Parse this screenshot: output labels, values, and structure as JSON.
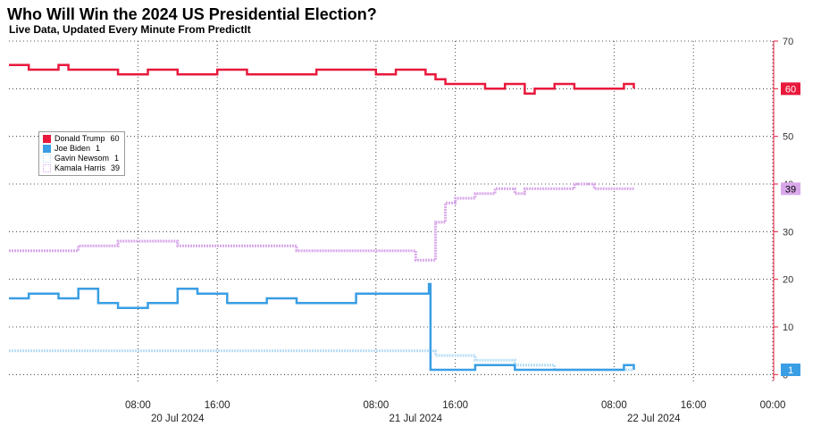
{
  "chart_data": {
    "type": "line",
    "title": "Who Will Win the 2024 US Presidential Election?",
    "subtitle": "Live Data, Updated Every Minute From PredictIt",
    "xlabel": "",
    "ylabel": "",
    "ylim": [
      -0.5,
      70
    ],
    "yticks": [
      0,
      10,
      20,
      30,
      40,
      50,
      60,
      70
    ],
    "xlim": [
      "2024-07-19 19:00",
      "2024-07-23 00:00"
    ],
    "x_time_ticks": [
      "08:00",
      "16:00",
      "08:00",
      "16:00",
      "08:00",
      "16:00",
      "00:00"
    ],
    "x_date_labels": [
      "20 Jul 2024",
      "21 Jul 2024",
      "22 Jul 2024"
    ],
    "grid": true,
    "legend_position": "top-left",
    "series": [
      {
        "name": "Donald Trump",
        "legend_value": "60",
        "last_label": "60",
        "color": "#e8193c",
        "style": "solid",
        "points": [
          [
            "2024-07-19 19:00",
            65
          ],
          [
            "2024-07-19 21:00",
            64
          ],
          [
            "2024-07-20 00:00",
            65
          ],
          [
            "2024-07-20 01:00",
            64
          ],
          [
            "2024-07-20 06:00",
            63
          ],
          [
            "2024-07-20 09:00",
            64
          ],
          [
            "2024-07-20 12:00",
            63
          ],
          [
            "2024-07-20 16:00",
            64
          ],
          [
            "2024-07-20 19:00",
            63
          ],
          [
            "2024-07-20 22:00",
            63
          ],
          [
            "2024-07-21 02:00",
            64
          ],
          [
            "2024-07-21 04:00",
            64
          ],
          [
            "2024-07-21 08:00",
            63
          ],
          [
            "2024-07-21 10:00",
            64
          ],
          [
            "2024-07-21 13:00",
            63
          ],
          [
            "2024-07-21 14:00",
            62
          ],
          [
            "2024-07-21 15:00",
            61
          ],
          [
            "2024-07-21 18:00",
            61
          ],
          [
            "2024-07-21 19:00",
            60
          ],
          [
            "2024-07-21 21:00",
            61
          ],
          [
            "2024-07-21 23:00",
            59
          ],
          [
            "2024-07-22 00:00",
            60
          ],
          [
            "2024-07-22 02:00",
            61
          ],
          [
            "2024-07-22 04:00",
            60
          ],
          [
            "2024-07-22 07:00",
            60
          ],
          [
            "2024-07-22 09:00",
            61
          ],
          [
            "2024-07-22 10:00",
            60
          ]
        ]
      },
      {
        "name": "Joe Biden",
        "legend_value": "1",
        "last_label": "1",
        "color": "#3a9ee4",
        "style": "solid",
        "points": [
          [
            "2024-07-19 19:00",
            16
          ],
          [
            "2024-07-19 21:00",
            17
          ],
          [
            "2024-07-20 00:00",
            16
          ],
          [
            "2024-07-20 02:00",
            18
          ],
          [
            "2024-07-20 04:00",
            15
          ],
          [
            "2024-07-20 06:00",
            14
          ],
          [
            "2024-07-20 09:00",
            15
          ],
          [
            "2024-07-20 12:00",
            18
          ],
          [
            "2024-07-20 14:00",
            17
          ],
          [
            "2024-07-20 17:00",
            15
          ],
          [
            "2024-07-20 21:00",
            16
          ],
          [
            "2024-07-21 00:00",
            15
          ],
          [
            "2024-07-21 03:00",
            15
          ],
          [
            "2024-07-21 06:00",
            17
          ],
          [
            "2024-07-21 09:00",
            17
          ],
          [
            "2024-07-21 13:00",
            17
          ],
          [
            "2024-07-21 13:20",
            19
          ],
          [
            "2024-07-21 13:30",
            1
          ],
          [
            "2024-07-21 18:00",
            2
          ],
          [
            "2024-07-21 22:00",
            1
          ],
          [
            "2024-07-22 03:00",
            1
          ],
          [
            "2024-07-22 06:00",
            1
          ],
          [
            "2024-07-22 09:00",
            2
          ],
          [
            "2024-07-22 10:00",
            1
          ]
        ]
      },
      {
        "name": "Gavin Newsom",
        "legend_value": "1",
        "last_label": "",
        "color": "#b9def6",
        "style": "dotted",
        "points": [
          [
            "2024-07-19 19:00",
            5
          ],
          [
            "2024-07-20 04:00",
            5
          ],
          [
            "2024-07-20 12:00",
            5
          ],
          [
            "2024-07-20 20:00",
            5
          ],
          [
            "2024-07-21 04:00",
            5
          ],
          [
            "2024-07-21 10:00",
            5
          ],
          [
            "2024-07-21 13:00",
            5
          ],
          [
            "2024-07-21 14:00",
            4
          ],
          [
            "2024-07-21 18:00",
            3
          ],
          [
            "2024-07-21 22:00",
            2
          ],
          [
            "2024-07-22 02:00",
            1
          ],
          [
            "2024-07-22 06:00",
            1
          ],
          [
            "2024-07-22 10:00",
            1
          ]
        ]
      },
      {
        "name": "Kamala Harris",
        "legend_value": "39",
        "last_label": "39",
        "color": "#d9a8ea",
        "style": "dotted",
        "points": [
          [
            "2024-07-19 19:00",
            26
          ],
          [
            "2024-07-20 02:00",
            27
          ],
          [
            "2024-07-20 06:00",
            28
          ],
          [
            "2024-07-20 12:00",
            27
          ],
          [
            "2024-07-20 18:00",
            27
          ],
          [
            "2024-07-21 00:00",
            26
          ],
          [
            "2024-07-21 06:00",
            26
          ],
          [
            "2024-07-21 10:00",
            26
          ],
          [
            "2024-07-21 12:00",
            24
          ],
          [
            "2024-07-21 13:00",
            24
          ],
          [
            "2024-07-21 14:00",
            32
          ],
          [
            "2024-07-21 15:00",
            36
          ],
          [
            "2024-07-21 16:00",
            37
          ],
          [
            "2024-07-21 18:00",
            38
          ],
          [
            "2024-07-21 20:00",
            39
          ],
          [
            "2024-07-21 22:00",
            38
          ],
          [
            "2024-07-21 23:00",
            39
          ],
          [
            "2024-07-22 00:00",
            39
          ],
          [
            "2024-07-22 02:00",
            39
          ],
          [
            "2024-07-22 04:00",
            40
          ],
          [
            "2024-07-22 06:00",
            39
          ],
          [
            "2024-07-22 08:00",
            39
          ],
          [
            "2024-07-22 10:00",
            39
          ]
        ]
      }
    ]
  }
}
